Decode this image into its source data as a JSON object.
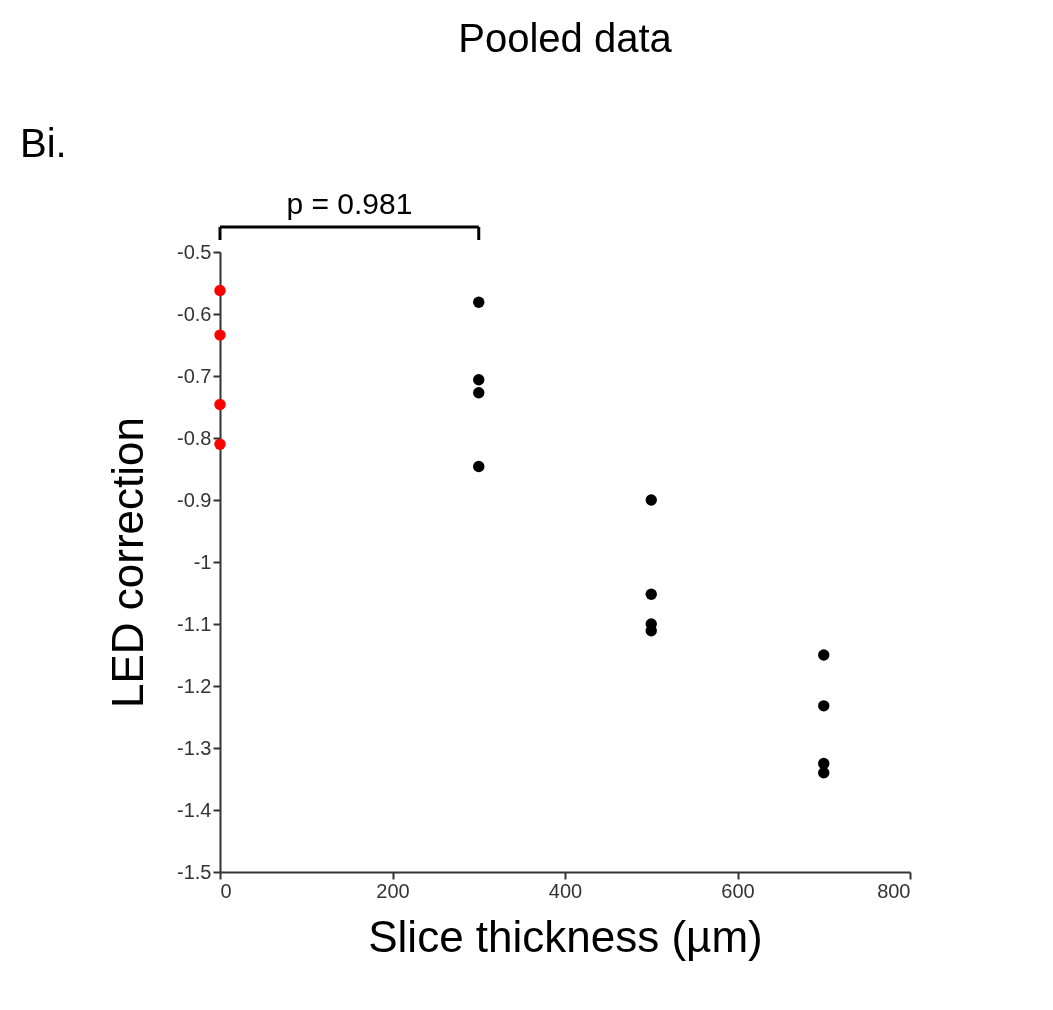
{
  "chart_data": {
    "type": "scatter",
    "title": "Pooled data",
    "xlabel": "Slice thickness (µm)",
    "ylabel": "LED correction",
    "annotations": [
      "Bi.",
      "p = 0.981"
    ],
    "series": [
      {
        "color": "#ff0000",
        "x": [
          0,
          0,
          0,
          0
        ],
        "values": [
          -0.562,
          -0.634,
          -0.746,
          -0.81
        ]
      },
      {
        "color": "#000000",
        "x": [
          300,
          300,
          300,
          300,
          500,
          500,
          500,
          500,
          700,
          700,
          700,
          700
        ],
        "values": [
          -0.581,
          -0.706,
          -0.727,
          -0.846,
          -0.9,
          -1.052,
          -1.1,
          -1.111,
          -1.15,
          -1.232,
          -1.325,
          -1.34
        ]
      }
    ],
    "xlim": [
      0,
      800
    ],
    "xticks": [
      0,
      200,
      400,
      600,
      800
    ],
    "ylim": [
      -1.5,
      -0.5
    ],
    "yticks": [
      {
        "value": -1.5,
        "label": "-1.5"
      },
      {
        "value": -1.4,
        "label": "-1.4"
      },
      {
        "value": -1.3,
        "label": "-1.3"
      },
      {
        "value": -1.2,
        "label": "-1.2"
      },
      {
        "value": -1.1,
        "label": "-1.1"
      },
      {
        "value": -1,
        "label": "-1"
      },
      {
        "value": -0.9,
        "label": "-0.9"
      },
      {
        "value": -0.8,
        "label": "-0.8"
      },
      {
        "value": -0.7,
        "label": "-0.7"
      },
      {
        "value": -0.6,
        "label": "-0.6"
      },
      {
        "value": -0.5,
        "label": "-0.5"
      }
    ],
    "grid": false,
    "marker": "circle"
  }
}
